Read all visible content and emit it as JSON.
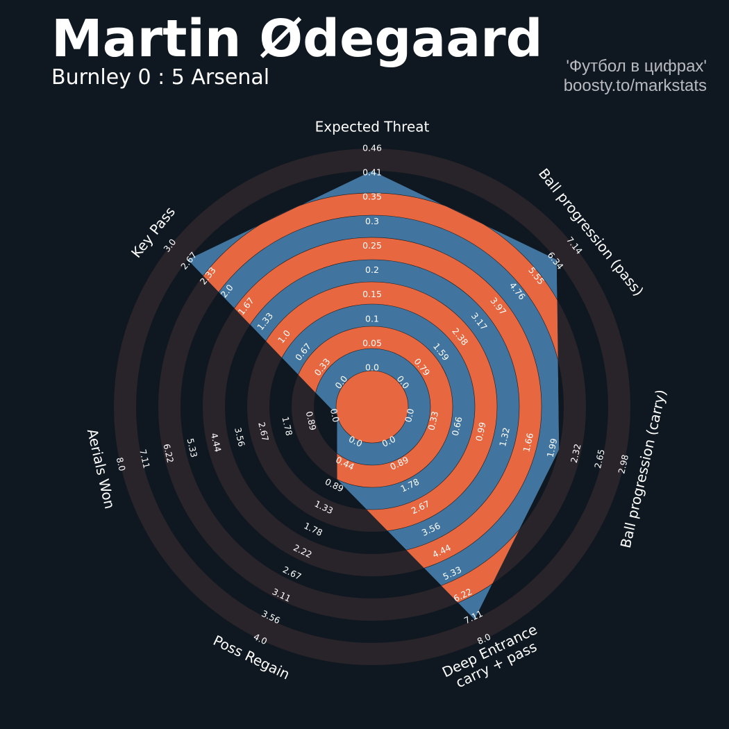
{
  "header": {
    "title": "Martin Ødegaard",
    "subtitle": "Burnley 0 : 5 Arsenal",
    "credit_line1": "'Футбол в цифрах'",
    "credit_line2": "boosty.to/markstats"
  },
  "colors": {
    "background": "#0f1820",
    "ring_dark": "#29232a",
    "ring_orange": "#e76740",
    "fill_blue": "#41749e",
    "text": "#ffffff",
    "credit": "#b9b9c0"
  },
  "chart_data": {
    "type": "radar",
    "axes": [
      {
        "label": "Expected Threat",
        "ticks": [
          "0.0",
          "0.05",
          "0.1",
          "0.15",
          "0.2",
          "0.25",
          "0.3",
          "0.35",
          "0.41",
          "0.46"
        ],
        "value": 0.46,
        "range": [
          0,
          0.46
        ]
      },
      {
        "label": "Ball progression (pass)",
        "ticks": [
          "0.0",
          "0.79",
          "1.59",
          "2.38",
          "3.17",
          "3.97",
          "4.76",
          "5.55",
          "6.34",
          "7.14"
        ],
        "value": 7.14,
        "range": [
          0,
          7.14
        ]
      },
      {
        "label": "Ball progression (carry)",
        "ticks": [
          "0.0",
          "0.33",
          "0.66",
          "0.99",
          "1.32",
          "1.66",
          "1.99",
          "2.32",
          "2.65",
          "2.98"
        ],
        "value": 2.32,
        "range": [
          0,
          2.98
        ]
      },
      {
        "label": "Deep Entrance\ncarry + pass",
        "ticks": [
          "0.0",
          "0.89",
          "1.78",
          "2.67",
          "3.56",
          "4.44",
          "5.33",
          "6.22",
          "7.11",
          "8.0"
        ],
        "value": 8.0,
        "range": [
          0,
          8.0
        ]
      },
      {
        "label": "Poss Regain",
        "ticks": [
          "0.0",
          "0.44",
          "0.89",
          "1.33",
          "1.78",
          "2.22",
          "2.67",
          "3.11",
          "3.56",
          "4.0"
        ],
        "value": 0.89,
        "range": [
          0,
          4.0
        ]
      },
      {
        "label": "Aerials Won",
        "ticks": [
          "0.0",
          "0.89",
          "1.78",
          "2.67",
          "3.56",
          "4.44",
          "5.33",
          "6.22",
          "7.11",
          "8.0"
        ],
        "value": 0.0,
        "range": [
          0,
          8.0
        ]
      },
      {
        "label": "Key Pass",
        "ticks": [
          "0.0",
          "0.33",
          "0.67",
          "1.0",
          "1.33",
          "1.67",
          "2.0",
          "2.33",
          "2.67",
          "3.0"
        ],
        "value": 3.0,
        "range": [
          0,
          3.0
        ]
      }
    ]
  }
}
